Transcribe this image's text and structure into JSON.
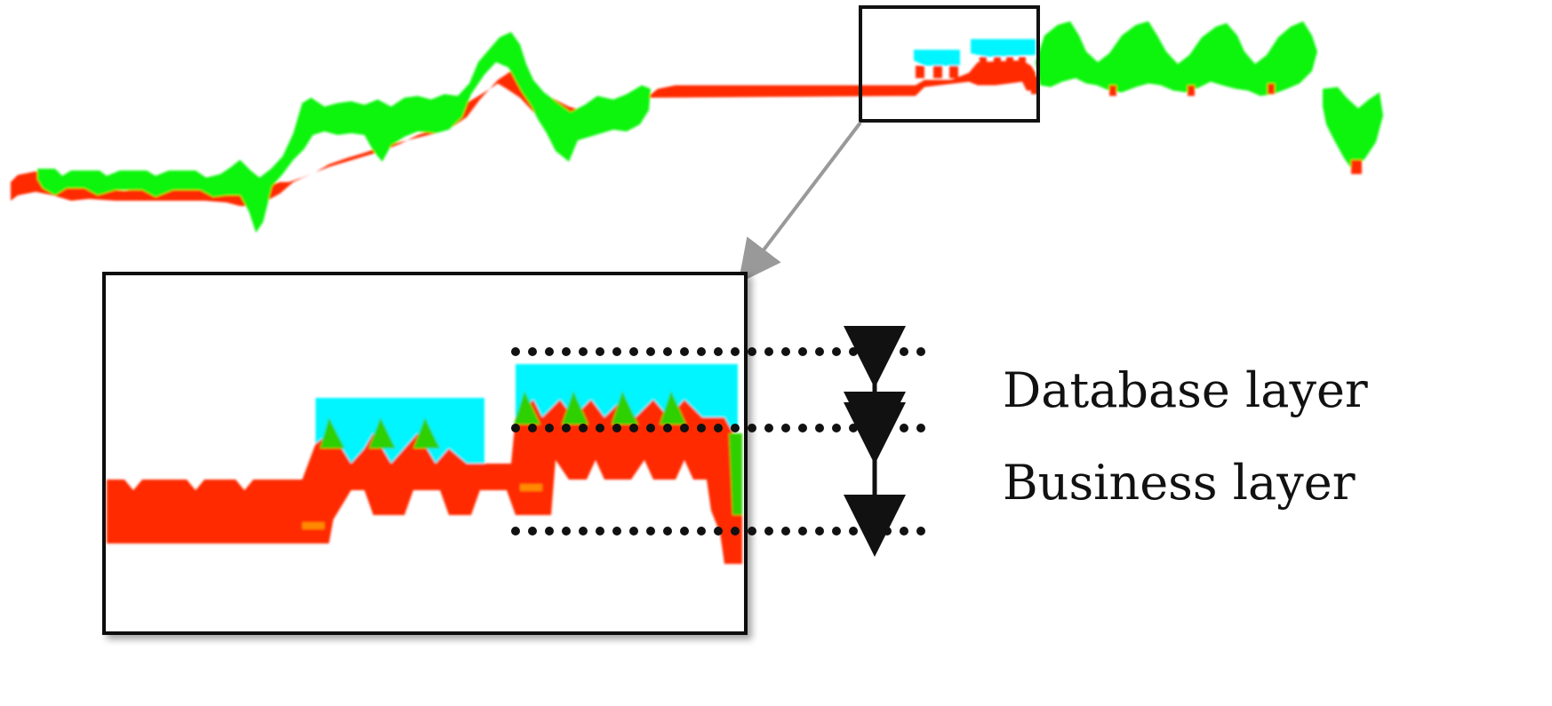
{
  "labels": {
    "database_layer": "Database layer",
    "business_layer": "Business layer"
  },
  "colors": {
    "business": "#ff2a00",
    "database": "#00f5ff",
    "green": "#0cf40c",
    "frame": "#111111",
    "connector": "#999999",
    "guide": "#111111"
  }
}
